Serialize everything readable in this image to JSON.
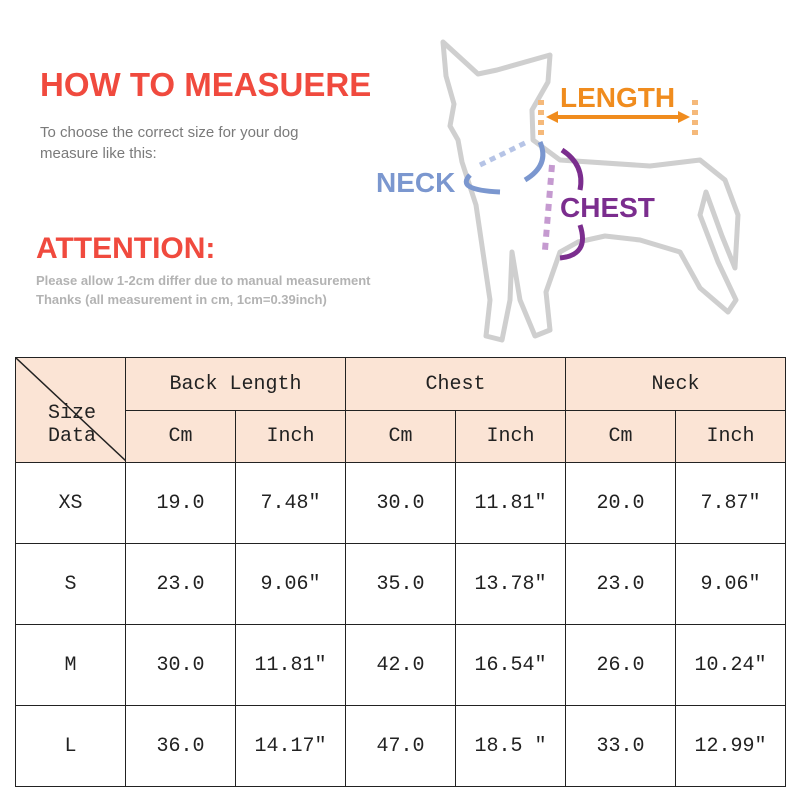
{
  "header": {
    "title": "HOW TO MEASUERE",
    "subtitle_lines": [
      "To choose the correct size for your dog",
      "measure like this:"
    ],
    "attention": "ATTENTION:",
    "note_lines": [
      "Please allow 1-2cm differ due to manual measurement",
      "Thanks (all measurement in cm, 1cm=0.39inch)"
    ]
  },
  "diagram": {
    "labels": {
      "length": "LENGTH",
      "neck": "NECK",
      "chest": "CHEST"
    },
    "colors": {
      "length": "#f08c1e",
      "neck": "#7b97cf",
      "chest": "#7b2d8e",
      "outline": "#cfcfcf"
    }
  },
  "table": {
    "corner_label": "Size Data",
    "groups": [
      "Back Length",
      "Chest",
      "Neck"
    ],
    "units": [
      "Cm",
      "Inch",
      "Cm",
      "Inch",
      "Cm",
      "Inch"
    ],
    "header_bg": "#fbe4d5",
    "rows": [
      {
        "size": "XS",
        "values": [
          "19.0",
          "7.48″",
          "30.0",
          "11.81″",
          "20.0",
          "7.87″"
        ]
      },
      {
        "size": "S",
        "values": [
          "23.0",
          "9.06″",
          "35.0",
          "13.78″",
          "23.0",
          "9.06″"
        ]
      },
      {
        "size": "M",
        "values": [
          "30.0",
          "11.81″",
          "42.0",
          "16.54″",
          "26.0",
          "10.24″"
        ]
      },
      {
        "size": "L",
        "values": [
          "36.0",
          "14.17″",
          "47.0",
          "18.5 ″",
          "33.0",
          "12.99″"
        ]
      }
    ]
  }
}
